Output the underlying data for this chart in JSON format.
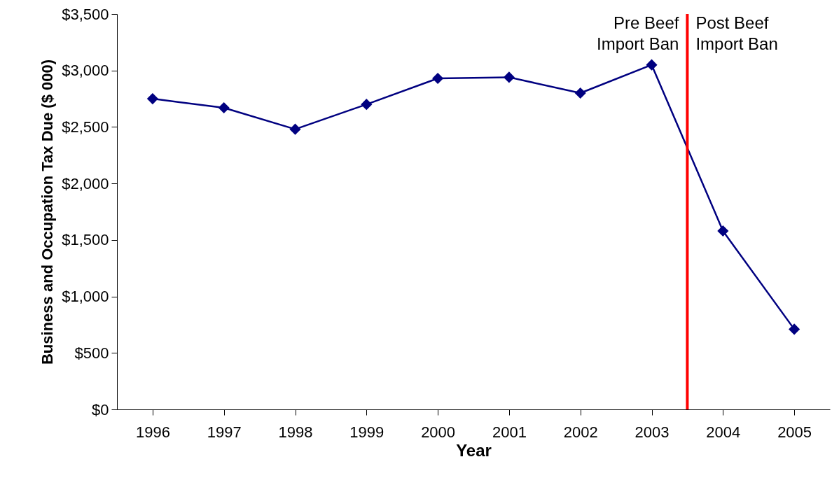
{
  "chart_data": {
    "type": "line",
    "xlabel": "Year",
    "ylabel": "Business and Occupation Tax Due ($ 000)",
    "x": [
      1996,
      1997,
      1998,
      1999,
      2000,
      2001,
      2002,
      2003,
      2004,
      2005
    ],
    "xlim": [
      1995.5,
      2005.5
    ],
    "xticks": [
      1996,
      1997,
      1998,
      1999,
      2000,
      2001,
      2002,
      2003,
      2004,
      2005
    ],
    "series": [
      {
        "color": "#000080",
        "values": [
          2750,
          2670,
          2480,
          2700,
          2930,
          2940,
          2800,
          3050,
          1580,
          710
        ]
      }
    ],
    "ylim": [
      0,
      3500
    ],
    "yticks": [
      {
        "value": 0,
        "label": "$0"
      },
      {
        "value": 500,
        "label": "$500"
      },
      {
        "value": 1000,
        "label": "$1,000"
      },
      {
        "value": 1500,
        "label": "$1,500"
      },
      {
        "value": 2000,
        "label": "$2,000"
      },
      {
        "value": 2500,
        "label": "$2,500"
      },
      {
        "value": 3000,
        "label": "$3,000"
      },
      {
        "value": 3500,
        "label": "$3,500"
      }
    ],
    "ref_lines": [
      {
        "axis": "x",
        "value": 2003.5,
        "color": "#ff0000"
      }
    ],
    "annotations": [
      "Pre Beef\nImport Ban",
      "Post Beef\nImport Ban"
    ],
    "marker": "diamond",
    "grid": false
  }
}
